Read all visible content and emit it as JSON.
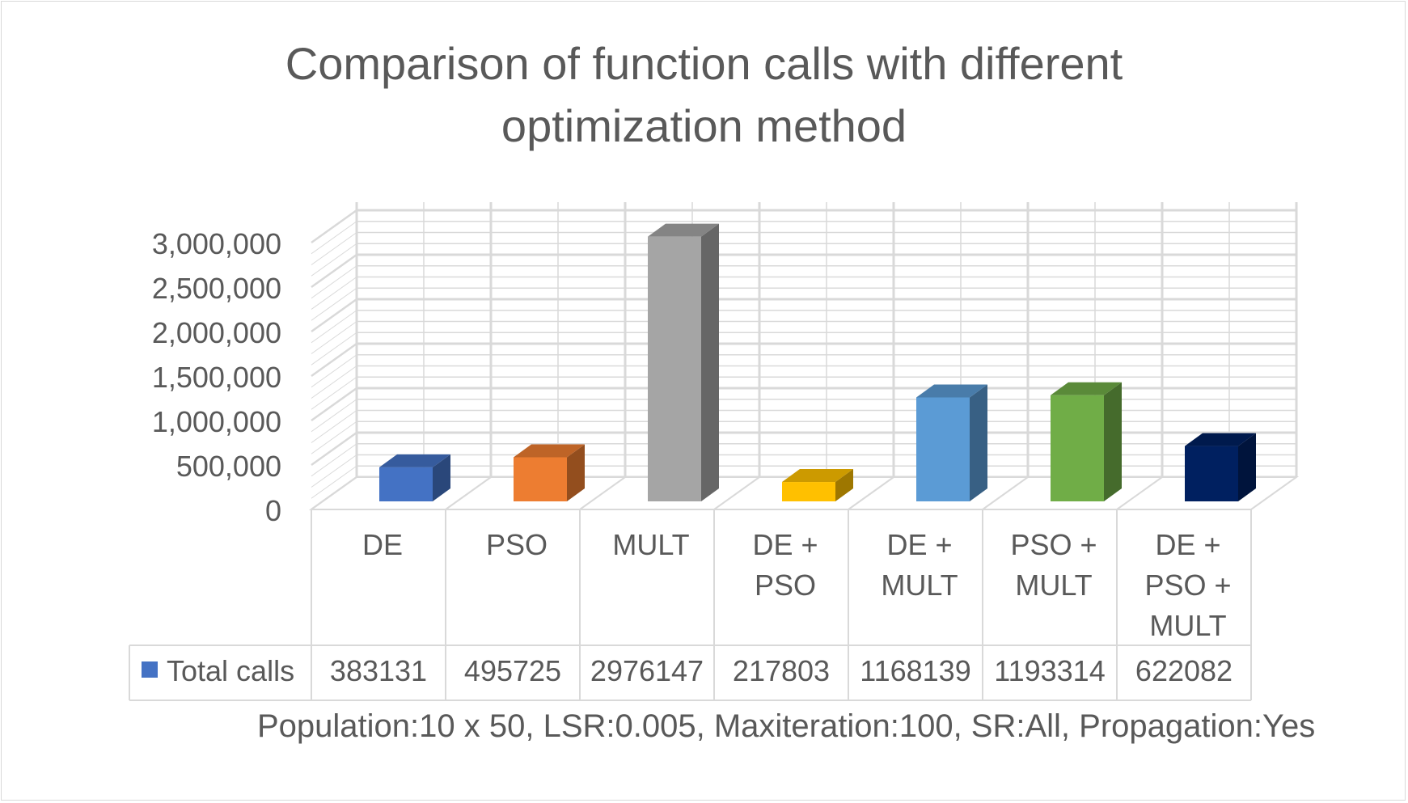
{
  "chart_data": {
    "type": "bar",
    "title_lines": [
      "Comparison of function calls with different",
      "optimization method"
    ],
    "categories": [
      [
        "DE"
      ],
      [
        "PSO"
      ],
      [
        "MULT"
      ],
      [
        "DE +",
        "PSO"
      ],
      [
        "DE +",
        "MULT"
      ],
      [
        "PSO +",
        "MULT"
      ],
      [
        "DE +",
        "PSO +",
        "MULT"
      ]
    ],
    "series": [
      {
        "name": "Total calls",
        "values": [
          383131,
          495725,
          2976147,
          217803,
          1168139,
          1193314,
          622082
        ],
        "colors": [
          "#4472C4",
          "#ED7D31",
          "#A5A5A5",
          "#FFC000",
          "#5B9BD5",
          "#70AD47",
          "#002060"
        ]
      }
    ],
    "yticks": [
      "0",
      "500,000",
      "1,000,000",
      "1,500,000",
      "2,000,000",
      "2,500,000",
      "3,000,000"
    ],
    "ylim": [
      0,
      3000000
    ],
    "grid": true,
    "data_table": true,
    "footnote": "Population:10 x 50, LSR:0.005, Maxiteration:100, SR:All, Propagation:Yes"
  }
}
